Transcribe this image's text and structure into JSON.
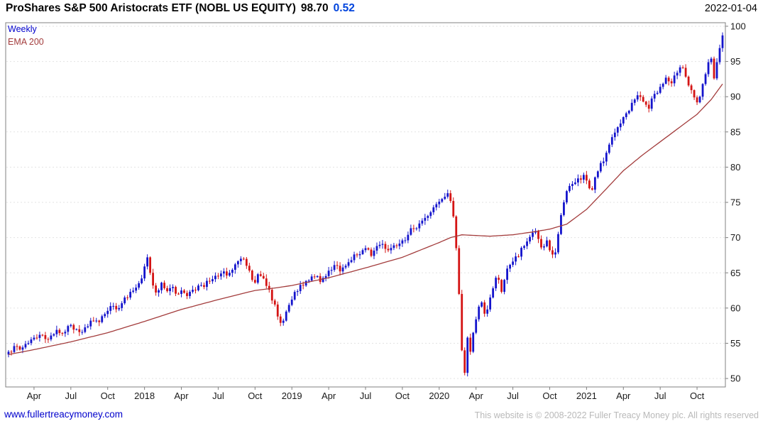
{
  "header": {
    "title": "ProShares S&P 500 Aristocrats ETF (NOBL US EQUITY)",
    "price": "98.70",
    "change": "0.52",
    "date": "2022-01-04"
  },
  "legend": {
    "timeframe": "Weekly",
    "overlay": "EMA 200"
  },
  "footer": {
    "site_link": "www.fullertreacymoney.com",
    "copyright": "This website is © 2008-2022 Fuller Treacy Money plc. All rights reserved"
  },
  "colors": {
    "up_candle": "#1414cc",
    "down_candle": "#d41414",
    "ema_line": "#a33c3c",
    "grid": "#e3e3e3",
    "axis_text": "#1a1a1a",
    "frame": "#808080",
    "change_text": "#0044dd",
    "link": "#0000cc",
    "copyright_text": "#b9b9b9"
  },
  "chart_data": {
    "type": "candlestick",
    "title": "ProShares S&P 500 Aristocrats ETF (NOBL US EQUITY)",
    "instrument": "NOBL US EQUITY",
    "frequency": "weekly",
    "overlay": "EMA 200",
    "x_start": "2017-02",
    "x_end": "2022-01-04",
    "weeks": 253,
    "last": {
      "price": 98.7,
      "change": 0.52,
      "date": "2022-01-04"
    },
    "y_axis": {
      "min": 48.8,
      "max": 100.5,
      "ticks": [
        50,
        55,
        60,
        65,
        70,
        75,
        80,
        85,
        90,
        95,
        100
      ]
    },
    "x_ticks": [
      {
        "label": "Apr",
        "week": 9
      },
      {
        "label": "Jul",
        "week": 22
      },
      {
        "label": "Oct",
        "week": 35
      },
      {
        "label": "2018",
        "week": 48
      },
      {
        "label": "Apr",
        "week": 61
      },
      {
        "label": "Jul",
        "week": 74
      },
      {
        "label": "Oct",
        "week": 87
      },
      {
        "label": "2019",
        "week": 100
      },
      {
        "label": "Apr",
        "week": 113
      },
      {
        "label": "Jul",
        "week": 126
      },
      {
        "label": "Oct",
        "week": 139
      },
      {
        "label": "2020",
        "week": 152
      },
      {
        "label": "Apr",
        "week": 165
      },
      {
        "label": "Jul",
        "week": 178
      },
      {
        "label": "Oct",
        "week": 191
      },
      {
        "label": "2021",
        "week": 204
      },
      {
        "label": "Apr",
        "week": 217
      },
      {
        "label": "Jul",
        "week": 230
      },
      {
        "label": "Oct",
        "week": 243
      }
    ],
    "price_keypoints": [
      [
        0,
        53.8
      ],
      [
        2,
        54.6
      ],
      [
        4,
        54.1
      ],
      [
        6,
        54.9
      ],
      [
        9,
        55.8
      ],
      [
        11,
        56.2
      ],
      [
        13,
        55.6
      ],
      [
        15,
        56.1
      ],
      [
        17,
        56.9
      ],
      [
        19,
        56.4
      ],
      [
        22,
        57.6
      ],
      [
        24,
        57.0
      ],
      [
        26,
        56.6
      ],
      [
        28,
        57.4
      ],
      [
        30,
        58.2
      ],
      [
        32,
        58.0
      ],
      [
        35,
        59.6
      ],
      [
        37,
        60.3
      ],
      [
        39,
        60.0
      ],
      [
        41,
        61.5
      ],
      [
        43,
        62.3
      ],
      [
        45,
        62.9
      ],
      [
        47,
        64.2
      ],
      [
        49,
        67.2
      ],
      [
        50,
        65.0
      ],
      [
        51,
        63.2
      ],
      [
        52,
        62.2
      ],
      [
        54,
        63.6
      ],
      [
        56,
        62.4
      ],
      [
        58,
        63.0
      ],
      [
        60,
        62.0
      ],
      [
        61,
        62.5
      ],
      [
        63,
        61.7
      ],
      [
        65,
        62.6
      ],
      [
        67,
        63.2
      ],
      [
        69,
        63.0
      ],
      [
        71,
        63.8
      ],
      [
        74,
        64.5
      ],
      [
        76,
        65.2
      ],
      [
        78,
        65.0
      ],
      [
        80,
        66.2
      ],
      [
        82,
        67.0
      ],
      [
        84,
        66.0
      ],
      [
        86,
        64.0
      ],
      [
        87,
        63.6
      ],
      [
        88,
        64.8
      ],
      [
        90,
        64.2
      ],
      [
        92,
        62.6
      ],
      [
        94,
        60.5
      ],
      [
        95,
        58.8
      ],
      [
        96,
        57.9
      ],
      [
        98,
        59.5
      ],
      [
        100,
        61.2
      ],
      [
        102,
        62.4
      ],
      [
        104,
        63.2
      ],
      [
        106,
        63.9
      ],
      [
        108,
        64.4
      ],
      [
        110,
        63.7
      ],
      [
        113,
        65.3
      ],
      [
        115,
        66.1
      ],
      [
        117,
        65.2
      ],
      [
        119,
        66.0
      ],
      [
        121,
        66.8
      ],
      [
        123,
        67.5
      ],
      [
        126,
        68.5
      ],
      [
        128,
        67.4
      ],
      [
        130,
        68.8
      ],
      [
        132,
        69.1
      ],
      [
        134,
        68.2
      ],
      [
        136,
        68.9
      ],
      [
        139,
        69.6
      ],
      [
        141,
        70.4
      ],
      [
        143,
        71.3
      ],
      [
        145,
        72.0
      ],
      [
        147,
        72.8
      ],
      [
        149,
        73.6
      ],
      [
        152,
        75.1
      ],
      [
        154,
        75.8
      ],
      [
        155,
        76.3
      ],
      [
        156,
        75.2
      ],
      [
        157,
        73.0
      ],
      [
        158,
        68.5
      ],
      [
        159,
        62.0
      ],
      [
        160,
        54.0
      ],
      [
        161,
        50.8
      ],
      [
        162,
        55.8
      ],
      [
        163,
        53.8
      ],
      [
        164,
        56.5
      ],
      [
        165,
        58.4
      ],
      [
        166,
        60.2
      ],
      [
        167,
        60.8
      ],
      [
        168,
        59.2
      ],
      [
        169,
        59.8
      ],
      [
        170,
        61.5
      ],
      [
        171,
        62.8
      ],
      [
        172,
        64.3
      ],
      [
        173,
        64.0
      ],
      [
        174,
        62.3
      ],
      [
        175,
        64.0
      ],
      [
        176,
        65.6
      ],
      [
        178,
        66.6
      ],
      [
        180,
        67.3
      ],
      [
        182,
        68.8
      ],
      [
        184,
        70.1
      ],
      [
        186,
        70.9
      ],
      [
        188,
        68.6
      ],
      [
        190,
        69.6
      ],
      [
        191,
        68.2
      ],
      [
        192,
        67.6
      ],
      [
        193,
        67.9
      ],
      [
        194,
        70.5
      ],
      [
        195,
        73.2
      ],
      [
        196,
        75.0
      ],
      [
        197,
        76.6
      ],
      [
        199,
        77.6
      ],
      [
        201,
        78.4
      ],
      [
        203,
        78.9
      ],
      [
        204,
        78.1
      ],
      [
        205,
        77.0
      ],
      [
        206,
        76.8
      ],
      [
        208,
        79.4
      ],
      [
        210,
        80.8
      ],
      [
        212,
        83.2
      ],
      [
        214,
        84.9
      ],
      [
        216,
        86.2
      ],
      [
        217,
        87.1
      ],
      [
        219,
        88.0
      ],
      [
        221,
        89.6
      ],
      [
        222,
        90.2
      ],
      [
        224,
        89.3
      ],
      [
        226,
        88.3
      ],
      [
        228,
        90.4
      ],
      [
        230,
        91.4
      ],
      [
        232,
        92.7
      ],
      [
        234,
        91.9
      ],
      [
        236,
        93.4
      ],
      [
        238,
        94.1
      ],
      [
        240,
        91.6
      ],
      [
        242,
        89.9
      ],
      [
        243,
        89.2
      ],
      [
        244,
        90.0
      ],
      [
        245,
        91.8
      ],
      [
        246,
        93.2
      ],
      [
        247,
        94.9
      ],
      [
        248,
        95.4
      ],
      [
        249,
        92.6
      ],
      [
        250,
        94.9
      ],
      [
        251,
        96.9
      ],
      [
        252,
        98.7
      ]
    ],
    "ema_keypoints": [
      [
        0,
        53.4
      ],
      [
        9,
        54.1
      ],
      [
        22,
        55.2
      ],
      [
        35,
        56.5
      ],
      [
        48,
        58.1
      ],
      [
        61,
        59.8
      ],
      [
        74,
        61.2
      ],
      [
        87,
        62.5
      ],
      [
        95,
        62.9
      ],
      [
        100,
        63.2
      ],
      [
        113,
        64.3
      ],
      [
        126,
        65.7
      ],
      [
        139,
        67.2
      ],
      [
        152,
        69.3
      ],
      [
        156,
        70.0
      ],
      [
        160,
        70.4
      ],
      [
        165,
        70.3
      ],
      [
        170,
        70.2
      ],
      [
        178,
        70.4
      ],
      [
        185,
        70.8
      ],
      [
        191,
        71.2
      ],
      [
        197,
        71.9
      ],
      [
        204,
        74.0
      ],
      [
        210,
        76.5
      ],
      [
        217,
        79.5
      ],
      [
        224,
        81.8
      ],
      [
        230,
        83.6
      ],
      [
        236,
        85.4
      ],
      [
        243,
        87.5
      ],
      [
        248,
        89.6
      ],
      [
        252,
        91.8
      ]
    ]
  }
}
